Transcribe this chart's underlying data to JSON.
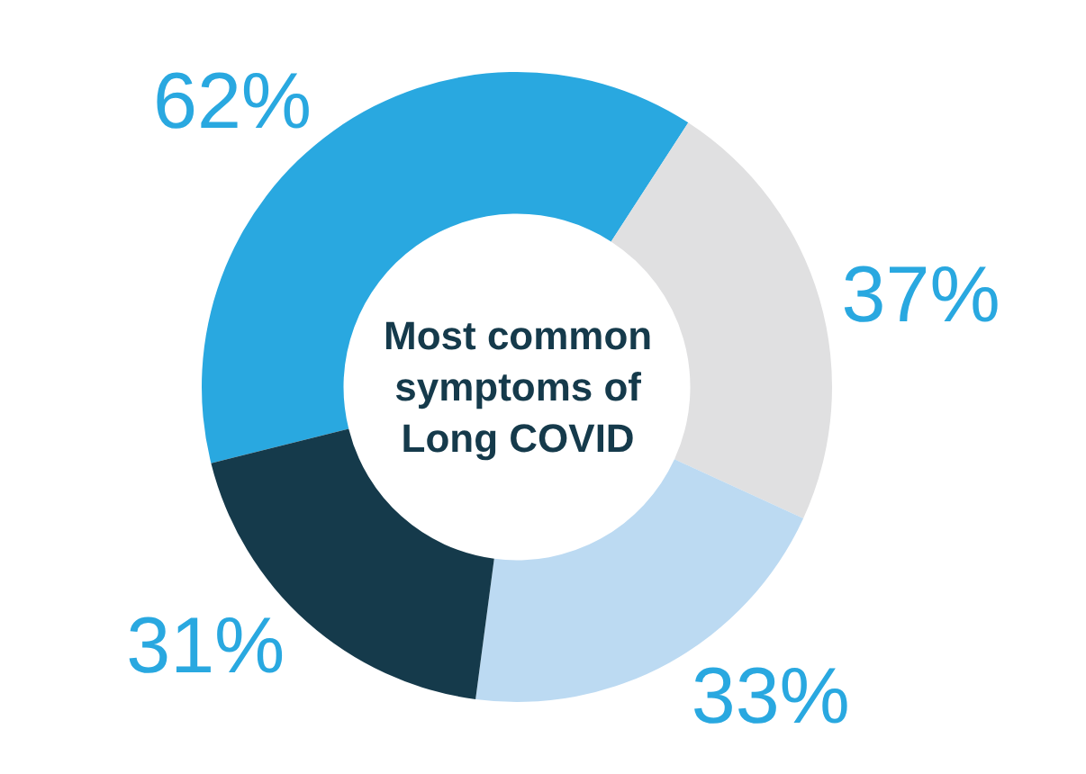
{
  "chart_data": {
    "type": "donut",
    "title": "Most common symptoms of Long COVID",
    "categories": [
      null,
      null,
      null,
      null
    ],
    "values": [
      62,
      37,
      33,
      31
    ],
    "value_labels": [
      "62%",
      "37%",
      "33%",
      "31%"
    ],
    "colors": [
      "#29a8e0",
      "#e0e0e1",
      "#bcdaf2",
      "#153a4b"
    ],
    "legend": false
  }
}
